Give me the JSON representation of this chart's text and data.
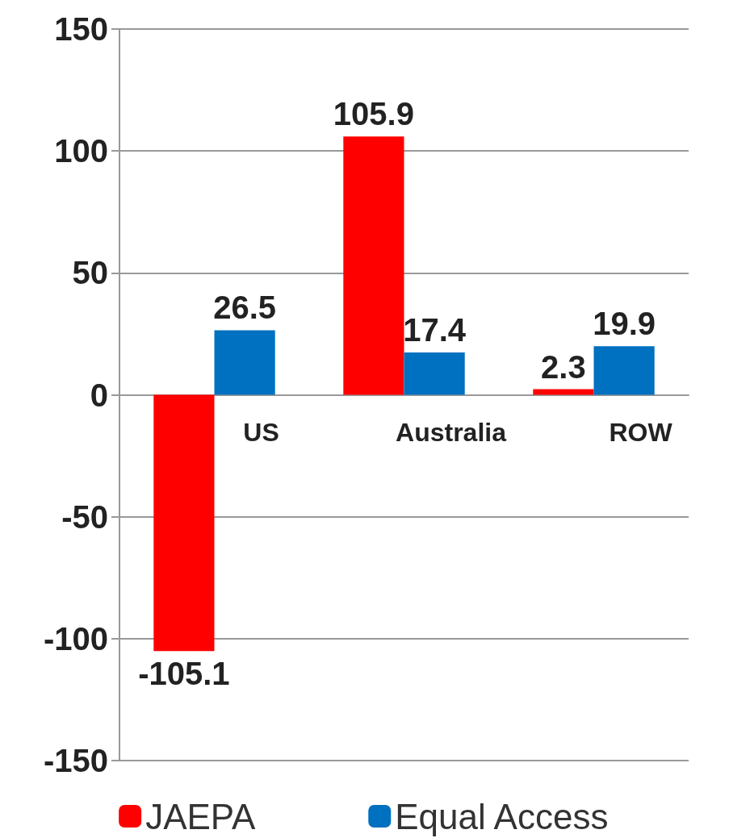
{
  "chart_data": {
    "type": "bar",
    "categories": [
      "US",
      "Australia",
      "ROW"
    ],
    "series": [
      {
        "name": "JAEPA",
        "color": "#ff0000",
        "values": [
          -105.1,
          105.9,
          2.3
        ]
      },
      {
        "name": "Equal Access",
        "color": "#0070c0",
        "values": [
          26.5,
          17.4,
          19.9
        ]
      }
    ],
    "ylim": [
      -150,
      150
    ],
    "yticks": [
      -150,
      -100,
      -50,
      0,
      50,
      100,
      150
    ],
    "grid": "y",
    "legend": "bottom",
    "data_labels": true
  }
}
